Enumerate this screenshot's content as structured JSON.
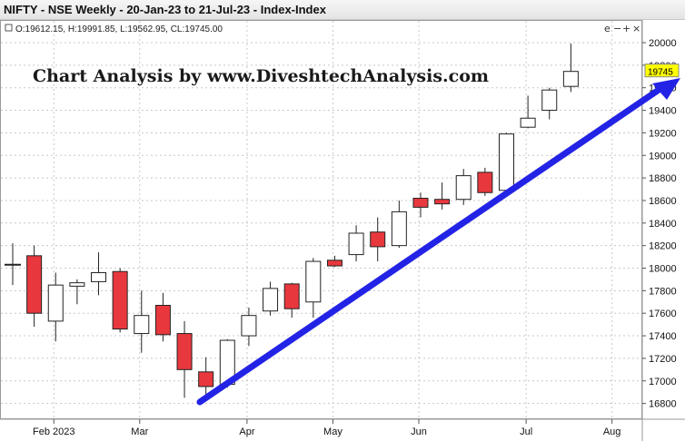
{
  "header": {
    "title": "NIFTY - NSE Weekly - 20-Jan-23 to 21-Jul-23 - Index-Index"
  },
  "ohlc_readout": "O:19612.15, H:19991.85, L:19562.95, CL:19745.00",
  "watermark": "Chart Analysis by www.DiveshtechAnalysis.com",
  "controls": {
    "e": "e",
    "minus": "−",
    "plus": "+",
    "close": "×"
  },
  "last_price_label": "19745",
  "colors": {
    "bear_fill": "#e8383d",
    "bull_fill": "#ffffff",
    "candle_border": "#222222",
    "trend_arrow": "#2323e6",
    "last_price_bg": "#ffff00",
    "grid": "#c8c8c8"
  },
  "chart_data": {
    "type": "candlestick",
    "title": "NIFTY - NSE Weekly - 20-Jan-23 to 21-Jul-23 - Index-Index",
    "y_ticks": [
      16800,
      17000,
      17200,
      17400,
      17600,
      17800,
      18000,
      18200,
      18400,
      18600,
      18800,
      19000,
      19200,
      19400,
      19600,
      19800,
      20000
    ],
    "ylim": [
      16700,
      20140
    ],
    "x_labels": [
      {
        "label": "Feb 2023",
        "index": 2
      },
      {
        "label": "Mar",
        "index": 6
      },
      {
        "label": "Apr",
        "index": 11
      },
      {
        "label": "May",
        "index": 15
      },
      {
        "label": "Jun",
        "index": 19
      },
      {
        "label": "Jul",
        "index": 24
      },
      {
        "label": "Aug",
        "index": 28
      }
    ],
    "grid": true,
    "last_price": 19745,
    "candles": [
      {
        "o": 18030,
        "h": 18220,
        "l": 17850,
        "c": 18030
      },
      {
        "o": 18110,
        "h": 18200,
        "l": 17480,
        "c": 17600
      },
      {
        "o": 17530,
        "h": 17960,
        "l": 17350,
        "c": 17850
      },
      {
        "o": 17840,
        "h": 17900,
        "l": 17680,
        "c": 17870
      },
      {
        "o": 17880,
        "h": 18140,
        "l": 17760,
        "c": 17960
      },
      {
        "o": 17970,
        "h": 18000,
        "l": 17430,
        "c": 17460
      },
      {
        "o": 17420,
        "h": 17800,
        "l": 17250,
        "c": 17580
      },
      {
        "o": 17670,
        "h": 17780,
        "l": 17350,
        "c": 17410
      },
      {
        "o": 17420,
        "h": 17530,
        "l": 16850,
        "c": 17100
      },
      {
        "o": 17080,
        "h": 17210,
        "l": 16830,
        "c": 16950
      },
      {
        "o": 16970,
        "h": 17370,
        "l": 16940,
        "c": 17360
      },
      {
        "o": 17400,
        "h": 17650,
        "l": 17310,
        "c": 17580
      },
      {
        "o": 17620,
        "h": 17880,
        "l": 17580,
        "c": 17820
      },
      {
        "o": 17860,
        "h": 17870,
        "l": 17560,
        "c": 17640
      },
      {
        "o": 17700,
        "h": 18090,
        "l": 17560,
        "c": 18060
      },
      {
        "o": 18070,
        "h": 18110,
        "l": 18010,
        "c": 18020
      },
      {
        "o": 18120,
        "h": 18380,
        "l": 18060,
        "c": 18310
      },
      {
        "o": 18320,
        "h": 18450,
        "l": 18060,
        "c": 18190
      },
      {
        "o": 18200,
        "h": 18600,
        "l": 18180,
        "c": 18500
      },
      {
        "o": 18620,
        "h": 18670,
        "l": 18450,
        "c": 18540
      },
      {
        "o": 18610,
        "h": 18760,
        "l": 18520,
        "c": 18570
      },
      {
        "o": 18610,
        "h": 18880,
        "l": 18560,
        "c": 18820
      },
      {
        "o": 18850,
        "h": 18890,
        "l": 18640,
        "c": 18670
      },
      {
        "o": 18690,
        "h": 19200,
        "l": 18660,
        "c": 19190
      },
      {
        "o": 19250,
        "h": 19530,
        "l": 19240,
        "c": 19330
      },
      {
        "o": 19400,
        "h": 19600,
        "l": 19320,
        "c": 19580
      },
      {
        "o": 19612.15,
        "h": 19991.85,
        "l": 19562.95,
        "c": 19745
      }
    ]
  }
}
